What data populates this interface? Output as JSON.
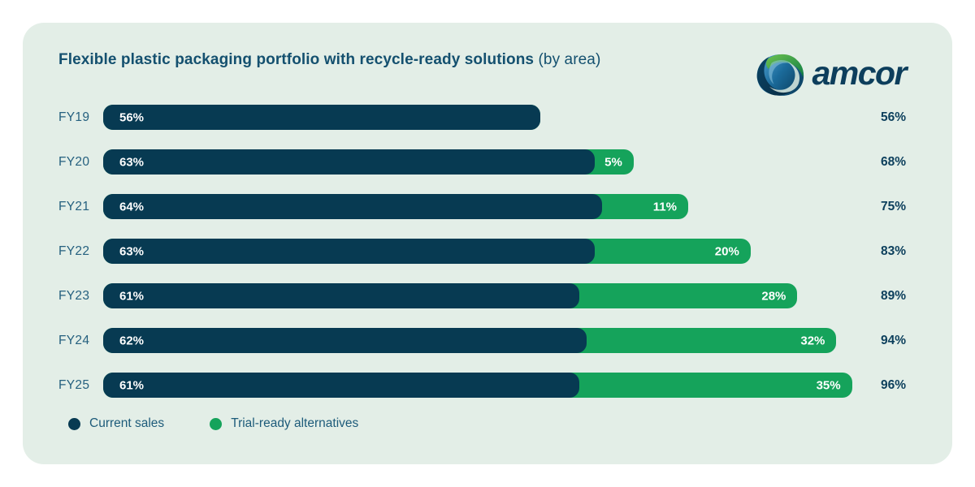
{
  "header": {
    "title_bold": "Flexible plastic packaging portfolio with recycle-ready solutions",
    "title_note": " (by area)",
    "brand": "amcor"
  },
  "legend": {
    "current": "Current sales",
    "trial": "Trial-ready alternatives"
  },
  "colors": {
    "card_background": "#e3eee7",
    "current_sales": "#073a52",
    "trial_ready": "#15a35b",
    "text_navy": "#14506f"
  },
  "rows": [
    {
      "label": "FY19",
      "current": 56,
      "trial": 0,
      "total": 56,
      "current_label": "56%",
      "trial_label": "",
      "total_label": "56%"
    },
    {
      "label": "FY20",
      "current": 63,
      "trial": 5,
      "total": 68,
      "current_label": "63%",
      "trial_label": "5%",
      "total_label": "68%"
    },
    {
      "label": "FY21",
      "current": 64,
      "trial": 11,
      "total": 75,
      "current_label": "64%",
      "trial_label": "11%",
      "total_label": "75%"
    },
    {
      "label": "FY22",
      "current": 63,
      "trial": 20,
      "total": 83,
      "current_label": "63%",
      "trial_label": "20%",
      "total_label": "83%"
    },
    {
      "label": "FY23",
      "current": 61,
      "trial": 28,
      "total": 89,
      "current_label": "61%",
      "trial_label": "28%",
      "total_label": "89%"
    },
    {
      "label": "FY24",
      "current": 62,
      "trial": 32,
      "total": 94,
      "current_label": "62%",
      "trial_label": "32%",
      "total_label": "94%"
    },
    {
      "label": "FY25",
      "current": 61,
      "trial": 35,
      "total": 96,
      "current_label": "61%",
      "trial_label": "35%",
      "total_label": "96%"
    }
  ],
  "chart_data": {
    "type": "bar",
    "orientation": "horizontal",
    "stacked": true,
    "title": "Flexible plastic packaging portfolio with recycle-ready solutions (by area)",
    "categories": [
      "FY19",
      "FY20",
      "FY21",
      "FY22",
      "FY23",
      "FY24",
      "FY25"
    ],
    "series": [
      {
        "name": "Current sales",
        "color": "#073a52",
        "values": [
          56,
          63,
          64,
          63,
          61,
          62,
          61
        ]
      },
      {
        "name": "Trial-ready alternatives",
        "color": "#15a35b",
        "values": [
          0,
          5,
          11,
          20,
          28,
          32,
          35
        ]
      }
    ],
    "totals": [
      56,
      68,
      75,
      83,
      89,
      94,
      96
    ],
    "unit": "%",
    "xlim": [
      0,
      100
    ],
    "legend_position": "bottom",
    "grid": false
  }
}
